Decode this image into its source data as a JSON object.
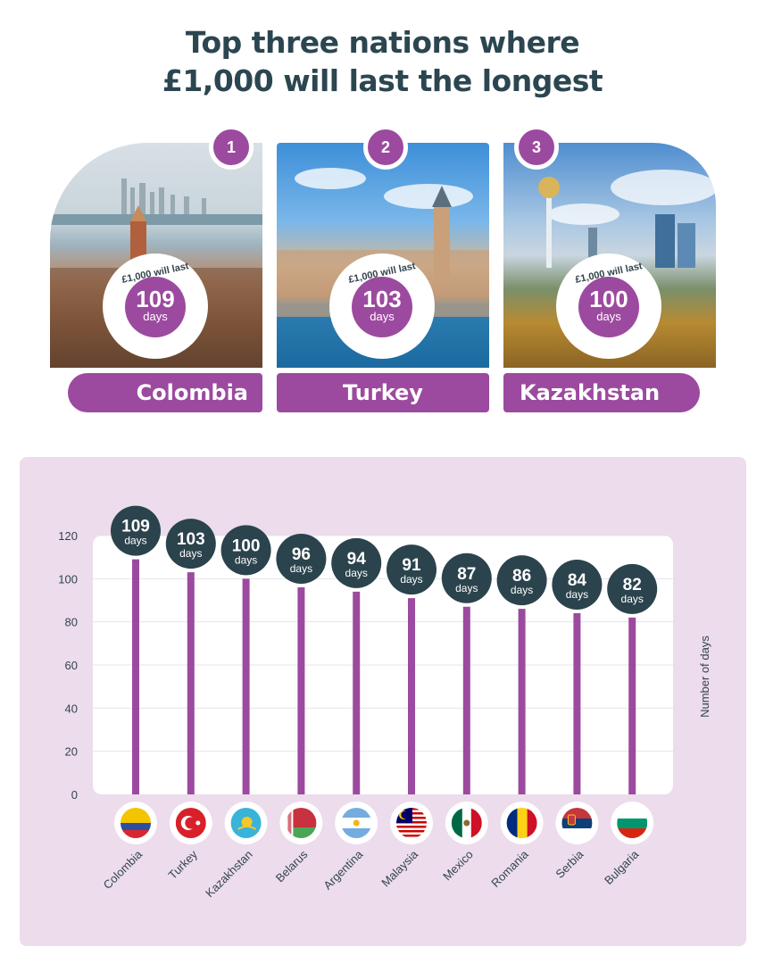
{
  "header": {
    "line1": "Top three nations where",
    "line2": "£1,000 will last the longest"
  },
  "cards": [
    {
      "rank": "1",
      "country": "Colombia",
      "bubble_label": "£1,000 will last",
      "days": "109",
      "unit": "days"
    },
    {
      "rank": "2",
      "country": "Turkey",
      "bubble_label": "£1,000 will last",
      "days": "103",
      "unit": "days"
    },
    {
      "rank": "3",
      "country": "Kazakhstan",
      "bubble_label": "£1,000 will last",
      "days": "100",
      "unit": "days"
    }
  ],
  "colors": {
    "accent": "#9c4a9f",
    "bubble": "#2b434c",
    "panel": "#ecdcec",
    "title": "#2b4650"
  },
  "chart_data": {
    "type": "bar",
    "categories": [
      "Colombia",
      "Turkey",
      "Kazakhstan",
      "Belarus",
      "Argentina",
      "Malaysia",
      "Mexico",
      "Romania",
      "Serbia",
      "Bulgaria"
    ],
    "values": [
      109,
      103,
      100,
      96,
      94,
      91,
      87,
      86,
      84,
      82
    ],
    "data_label_unit": "days",
    "ylabel": "Number of days",
    "ylim": [
      0,
      120
    ],
    "yticks": [
      0,
      20,
      40,
      60,
      80,
      100,
      120
    ],
    "grid": true,
    "flags": [
      "colombia-flag-icon",
      "turkey-flag-icon",
      "kazakhstan-flag-icon",
      "belarus-flag-icon",
      "argentina-flag-icon",
      "malaysia-flag-icon",
      "mexico-flag-icon",
      "romania-flag-icon",
      "serbia-flag-icon",
      "bulgaria-flag-icon"
    ]
  }
}
